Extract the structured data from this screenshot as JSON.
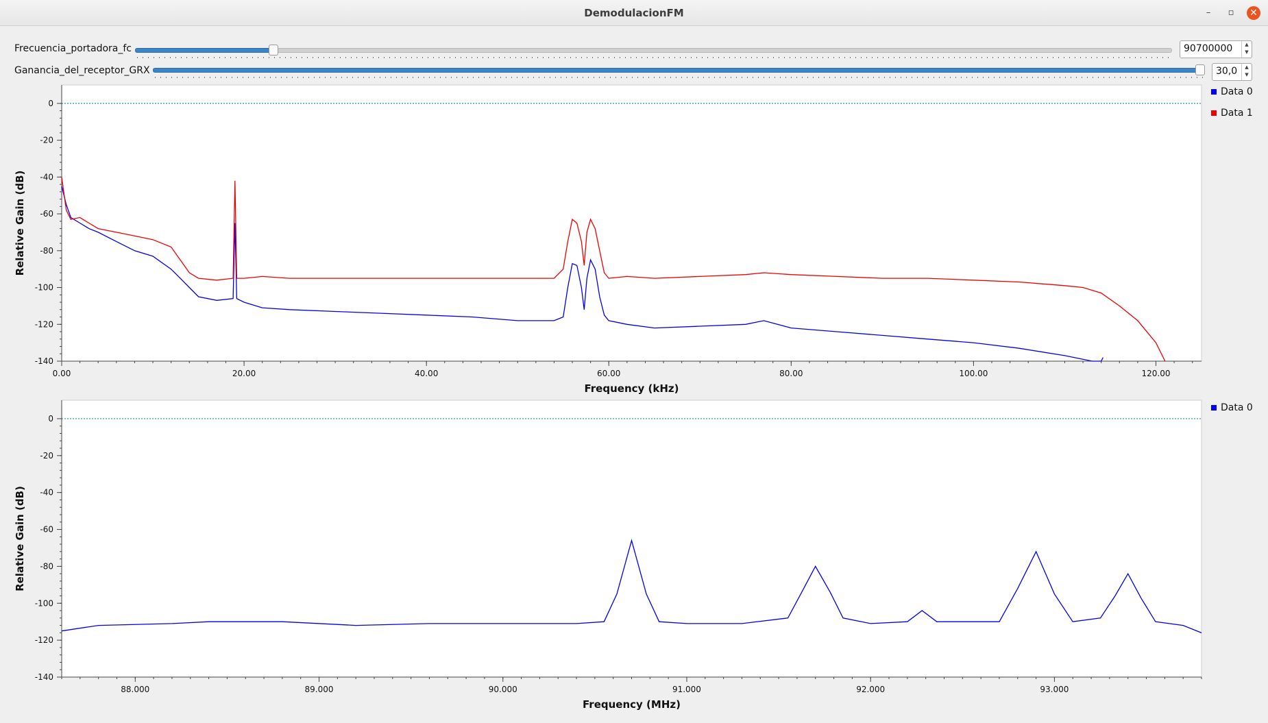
{
  "window": {
    "title": "DemodulacionFM",
    "minimize_glyph": "–",
    "maximize_glyph": "▫",
    "close_glyph": "✕"
  },
  "controls": {
    "fc": {
      "label": "Frecuencia_portadora_fc",
      "value": "90700000",
      "level": 0.13
    },
    "grx": {
      "label": "Ganancia_del_receptor_GRX",
      "value": "30,0",
      "level": 1.0
    }
  },
  "colors": {
    "data0": "#0000ee",
    "data1": "#ee0000",
    "ref_line": "#1a9a9a"
  },
  "chart_data": [
    {
      "type": "line",
      "xlabel": "Frequency (kHz)",
      "ylabel": "Relative Gain (dB)",
      "xlim": [
        0,
        125
      ],
      "ylim": [
        -140,
        10
      ],
      "xticks": [
        0,
        20,
        40,
        60,
        80,
        100,
        120
      ],
      "xtick_labels": [
        "0.00",
        "20.00",
        "40.00",
        "60.00",
        "80.00",
        "100.00",
        "120.00"
      ],
      "yticks": [
        0,
        -20,
        -40,
        -60,
        -80,
        -100,
        -120,
        -140
      ],
      "reference_line": 0,
      "legend": "top-right",
      "series": [
        {
          "name": "Data 0",
          "color": "#0000ee",
          "x": [
            0,
            0.5,
            1,
            2,
            3,
            4,
            6,
            8,
            10,
            12,
            13,
            14,
            15,
            17,
            18.8,
            19,
            19.2,
            20,
            22,
            25,
            30,
            35,
            40,
            45,
            50,
            54,
            55,
            55.5,
            56,
            56.5,
            57,
            57.3,
            57.6,
            58,
            58.5,
            59,
            59.5,
            60,
            62,
            65,
            70,
            75,
            77,
            80,
            85,
            90,
            95,
            100,
            105,
            110,
            112,
            113,
            114,
            114.2
          ],
          "values": [
            -45,
            -55,
            -62,
            -65,
            -68,
            -70,
            -75,
            -80,
            -83,
            -90,
            -95,
            -100,
            -105,
            -107,
            -106,
            -65,
            -106,
            -108,
            -111,
            -112,
            -113,
            -114,
            -115,
            -116,
            -118,
            -118,
            -116,
            -100,
            -87,
            -88,
            -100,
            -112,
            -95,
            -85,
            -90,
            -105,
            -115,
            -118,
            -120,
            -122,
            -121,
            -120,
            -118,
            -122,
            -124,
            -126,
            -128,
            -130,
            -133,
            -137,
            -139,
            -140,
            -140,
            -138
          ]
        },
        {
          "name": "Data 1",
          "color": "#ee0000",
          "x": [
            0,
            0.5,
            1,
            2,
            3,
            4,
            6,
            8,
            10,
            12,
            13,
            14,
            15,
            17,
            18.8,
            19,
            19.2,
            20,
            22,
            25,
            30,
            35,
            40,
            45,
            50,
            54,
            55,
            55.5,
            56,
            56.5,
            57,
            57.3,
            57.6,
            58,
            58.5,
            59,
            59.5,
            60,
            62,
            65,
            70,
            75,
            77,
            80,
            85,
            90,
            95,
            100,
            105,
            110,
            112,
            114,
            116,
            118,
            120,
            121
          ],
          "values": [
            -40,
            -58,
            -63,
            -62,
            -65,
            -68,
            -70,
            -72,
            -74,
            -78,
            -85,
            -92,
            -95,
            -96,
            -95,
            -42,
            -95,
            -95,
            -94,
            -95,
            -95,
            -95,
            -95,
            -95,
            -95,
            -95,
            -90,
            -75,
            -63,
            -65,
            -75,
            -88,
            -70,
            -63,
            -68,
            -80,
            -92,
            -95,
            -94,
            -95,
            -94,
            -93,
            -92,
            -93,
            -94,
            -95,
            -95,
            -96,
            -97,
            -99,
            -100,
            -103,
            -110,
            -118,
            -130,
            -140
          ]
        }
      ]
    },
    {
      "type": "line",
      "xlabel": "Frequency (MHz)",
      "ylabel": "Relative Gain (dB)",
      "xlim": [
        87.6,
        93.8
      ],
      "ylim": [
        -140,
        10
      ],
      "xticks": [
        88,
        89,
        90,
        91,
        92,
        93
      ],
      "xtick_labels": [
        "88.000",
        "89.000",
        "90.000",
        "91.000",
        "92.000",
        "93.000"
      ],
      "yticks": [
        0,
        -20,
        -40,
        -60,
        -80,
        -100,
        -120,
        -140
      ],
      "reference_line": 0,
      "legend": "top-right",
      "series": [
        {
          "name": "Data 0",
          "color": "#0000ee",
          "x": [
            87.6,
            87.8,
            88.2,
            88.4,
            88.8,
            89.2,
            89.6,
            90,
            90.4,
            90.55,
            90.62,
            90.7,
            90.78,
            90.85,
            91,
            91.3,
            91.55,
            91.62,
            91.7,
            91.78,
            91.85,
            92,
            92.2,
            92.28,
            92.36,
            92.5,
            92.7,
            92.8,
            92.9,
            93,
            93.1,
            93.25,
            93.33,
            93.4,
            93.47,
            93.55,
            93.7,
            93.8
          ],
          "values": [
            -115,
            -112,
            -111,
            -110,
            -110,
            -112,
            -111,
            -111,
            -111,
            -110,
            -95,
            -66,
            -95,
            -110,
            -111,
            -111,
            -108,
            -95,
            -80,
            -94,
            -108,
            -111,
            -110,
            -104,
            -110,
            -110,
            -110,
            -92,
            -72,
            -95,
            -110,
            -108,
            -96,
            -84,
            -97,
            -110,
            -112,
            -116
          ]
        }
      ]
    }
  ]
}
